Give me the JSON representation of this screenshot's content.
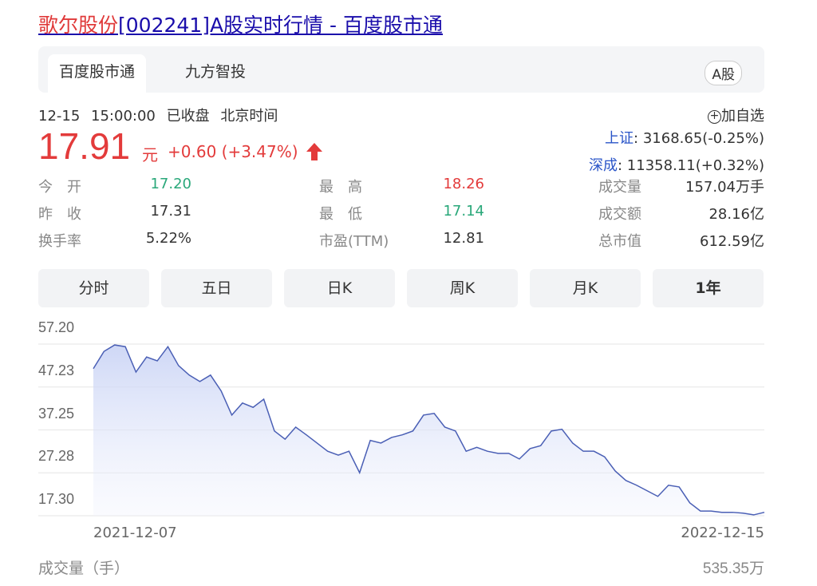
{
  "header": {
    "stock_name": "歌尔股份",
    "title_rest": "[002241]A股实时行情 - 百度股市通"
  },
  "tabs": [
    {
      "label": "百度股市通",
      "active": true
    },
    {
      "label": "九方智投",
      "active": false
    }
  ],
  "market_badge": "A股",
  "status": {
    "datetime": "12-15 15:00:00",
    "state": "已收盘",
    "timezone": "北京时间"
  },
  "quote": {
    "price": "17.91",
    "unit": "元",
    "change": "+0.60 (+3.47%)",
    "direction": "up",
    "color_up": "#e33b3b",
    "color_down": "#2aa87a"
  },
  "watchlist": {
    "label": "加自选",
    "icon": "plus-circle-icon"
  },
  "indices": [
    {
      "label": "上证",
      "value": ": 3168.65(-0.25%)"
    },
    {
      "label": "深成",
      "value": ": 11358.11(+0.32%)"
    }
  ],
  "stats": [
    {
      "label": "今　开",
      "value": "17.20",
      "color": "#2aa87a"
    },
    {
      "label": "昨　收",
      "value": "17.31",
      "color": "#333333"
    },
    {
      "label": "换手率",
      "value": "5.22%",
      "color": "#333333"
    },
    {
      "label": "最　高",
      "value": "18.26",
      "color": "#e33b3b"
    },
    {
      "label": "最　低",
      "value": "17.14",
      "color": "#2aa87a"
    },
    {
      "label": "市盈(TTM)",
      "value": "12.81",
      "color": "#333333"
    },
    {
      "label": "成交量",
      "value": "157.04万手",
      "color": "#333333"
    },
    {
      "label": "成交额",
      "value": "28.16亿",
      "color": "#333333"
    },
    {
      "label": "总市值",
      "value": "612.59亿",
      "color": "#333333"
    }
  ],
  "periods": [
    {
      "label": "分时"
    },
    {
      "label": "五日"
    },
    {
      "label": "日K"
    },
    {
      "label": "周K"
    },
    {
      "label": "月K"
    },
    {
      "label": "1年",
      "selected": true
    }
  ],
  "chart_data": {
    "type": "area",
    "y_ticks": [
      "57.20",
      "47.23",
      "37.25",
      "27.28",
      "17.30"
    ],
    "ylim": [
      17.3,
      57.2
    ],
    "x_start": "2021-12-07",
    "x_end": "2022-12-15",
    "grid": true,
    "line_color": "#4a5fb5",
    "values": [
      51.5,
      55.5,
      57.0,
      56.6,
      50.7,
      54.2,
      53.3,
      56.6,
      52.2,
      50.0,
      48.5,
      50.0,
      46.3,
      40.7,
      43.5,
      42.5,
      44.4,
      37.0,
      35.1,
      37.9,
      36.1,
      34.2,
      32.3,
      31.4,
      32.3,
      27.3,
      34.8,
      34.2,
      35.5,
      36.1,
      37.0,
      40.7,
      41.1,
      37.9,
      37.0,
      32.3,
      33.2,
      32.3,
      31.8,
      31.8,
      30.5,
      32.9,
      33.6,
      37.0,
      37.4,
      34.2,
      32.3,
      32.3,
      31.0,
      27.7,
      25.5,
      24.4,
      23.1,
      21.8,
      24.4,
      24.0,
      20.3,
      18.4,
      18.4,
      18.1,
      18.1,
      17.9,
      17.5,
      18.1
    ]
  },
  "volume": {
    "label": "成交量（手）",
    "max": "535.35万"
  }
}
